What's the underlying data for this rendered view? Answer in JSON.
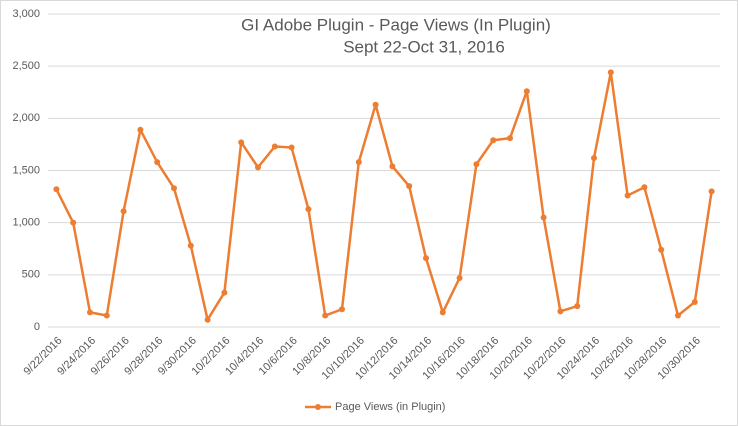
{
  "chart_data": {
    "type": "line",
    "title": "GI Adobe Plugin - Page Views (In Plugin)",
    "subtitle": "Sept 22-Oct 31, 2016",
    "categories": [
      "9/22/2016",
      null,
      "9/24/2016",
      null,
      "9/26/2016",
      null,
      "9/28/2016",
      null,
      "9/30/2016",
      null,
      "10/2/2016",
      null,
      "10/4/2016",
      null,
      "10/6/2016",
      null,
      "10/8/2016",
      null,
      "10/10/2016",
      null,
      "10/12/2016",
      null,
      "10/14/2016",
      null,
      "10/16/2016",
      null,
      "10/18/2016",
      null,
      "10/20/2016",
      null,
      "10/22/2016",
      null,
      "10/24/2016",
      null,
      "10/26/2016",
      null,
      "10/28/2016",
      null,
      "10/30/2016",
      null
    ],
    "series": [
      {
        "name": "Page Views (in Plugin)",
        "color": "#ed7d31",
        "values": [
          1320,
          1000,
          140,
          110,
          1110,
          1890,
          1580,
          1330,
          780,
          70,
          330,
          1770,
          1530,
          1730,
          1720,
          1130,
          110,
          170,
          1580,
          2130,
          1540,
          1350,
          660,
          140,
          470,
          1560,
          1790,
          1810,
          2260,
          1050,
          150,
          200,
          1620,
          2440,
          1260,
          1340,
          740,
          110,
          240,
          1300
        ]
      }
    ],
    "ylim": [
      0,
      3000
    ],
    "yticks": [
      0,
      500,
      {
        "value": 1000,
        "label": "1,000"
      },
      {
        "value": 1500,
        "label": "1,500"
      },
      {
        "value": 2000,
        "label": "2,000"
      },
      {
        "value": 2500,
        "label": "2,500"
      },
      {
        "value": 3000,
        "label": "3,000"
      }
    ],
    "grid": true,
    "legend": "bottom"
  }
}
